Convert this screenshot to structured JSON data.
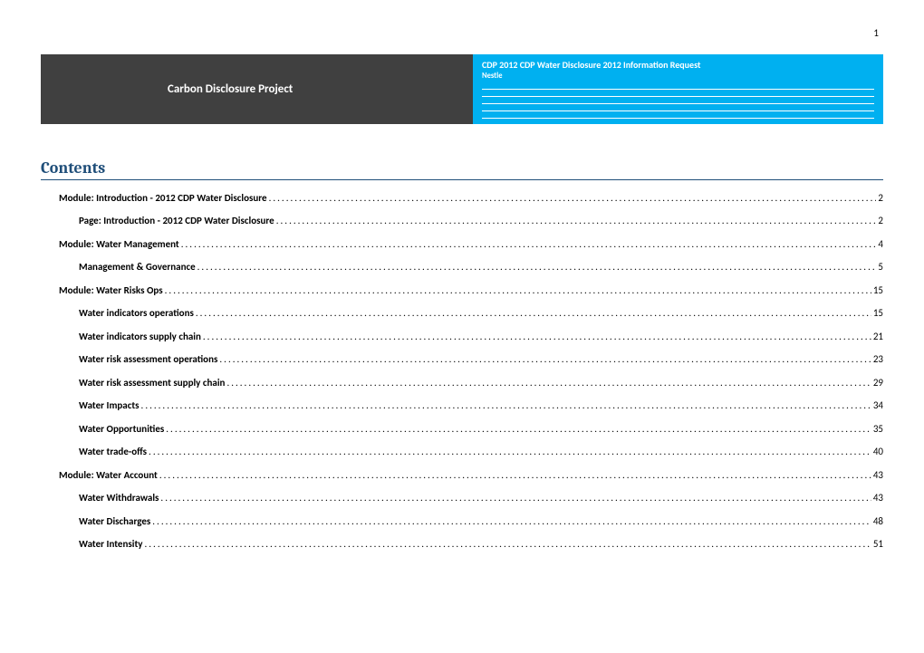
{
  "page_number": "1",
  "header": {
    "left_title": "Carbon Disclosure Project",
    "right_title": "CDP 2012 CDP Water Disclosure 2012 Information Request",
    "right_sub": "Nestle",
    "left_bg": "#404040",
    "right_bg": "#00b0f0"
  },
  "contents": {
    "title": "Contents",
    "title_color": "#1f4e79",
    "entries": [
      {
        "label": "Module: Introduction - 2012 CDP Water Disclosure",
        "page": "2",
        "level": 1
      },
      {
        "label": "Page: Introduction - 2012 CDP Water Disclosure",
        "page": "2",
        "level": 2
      },
      {
        "label": "Module:  Water Management",
        "page": "4",
        "level": 1
      },
      {
        "label": "Management & Governance",
        "page": "5",
        "level": 2
      },
      {
        "label": "Module:  Water Risks Ops",
        "page": "15",
        "level": 1
      },
      {
        "label": "Water indicators operations",
        "page": "15",
        "level": 2
      },
      {
        "label": "Water indicators supply chain",
        "page": "21",
        "level": 2
      },
      {
        "label": "Water risk assessment operations",
        "page": "23",
        "level": 2
      },
      {
        "label": "Water risk assessment supply chain",
        "page": "29",
        "level": 2
      },
      {
        "label": "Water Impacts",
        "page": "34",
        "level": 2
      },
      {
        "label": "Water Opportunities",
        "page": "35",
        "level": 2
      },
      {
        "label": "Water trade-offs",
        "page": "40",
        "level": 2
      },
      {
        "label": "Module:  Water Account",
        "page": "43",
        "level": 1
      },
      {
        "label": "Water Withdrawals",
        "page": "43",
        "level": 2
      },
      {
        "label": "Water Discharges",
        "page": "48",
        "level": 2
      },
      {
        "label": "Water Intensity",
        "page": "51",
        "level": 2
      }
    ]
  }
}
